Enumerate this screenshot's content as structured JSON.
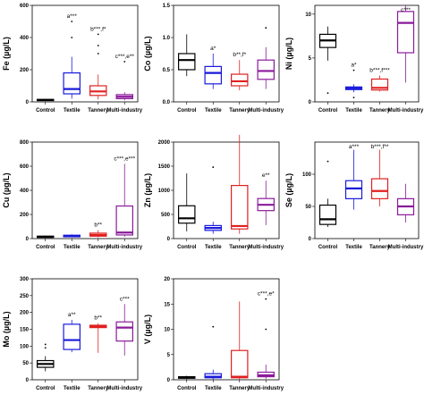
{
  "chart_data": [
    {
      "type": "box",
      "ylabel": "Fe (µg/L)",
      "categories": [
        "Control",
        "Textile",
        "Tannery",
        "Multi-industry"
      ],
      "colors": [
        "#000000",
        "#1a1adb",
        "#e02020",
        "#8a1a9a"
      ],
      "ylim": [
        0,
        600
      ],
      "yticks": [
        0,
        200,
        400,
        600
      ],
      "boxes": [
        {
          "q1": 8,
          "median": 12,
          "q3": 15,
          "whisker_low": 5,
          "whisker_high": 18,
          "outliers": []
        },
        {
          "q1": 50,
          "median": 80,
          "q3": 180,
          "whisker_low": 20,
          "whisker_high": 280,
          "outliers": [
            400,
            500
          ]
        },
        {
          "q1": 40,
          "median": 65,
          "q3": 100,
          "whisker_low": 15,
          "whisker_high": 170,
          "outliers": [
            300,
            350,
            420
          ]
        },
        {
          "q1": 20,
          "median": 32,
          "q3": 45,
          "whisker_low": 10,
          "whisker_high": 60,
          "outliers": [
            250
          ]
        }
      ],
      "significance": [
        "",
        "a***",
        "b***,f*",
        "c***,e**"
      ]
    },
    {
      "type": "box",
      "ylabel": "Co (µg/L)",
      "categories": [
        "Control",
        "Textile",
        "Tannery",
        "Multi-industry"
      ],
      "colors": [
        "#000000",
        "#1a1adb",
        "#e02020",
        "#8a1a9a"
      ],
      "ylim": [
        0,
        1.5
      ],
      "yticks": [
        0.0,
        0.5,
        1.0,
        1.5
      ],
      "boxes": [
        {
          "q1": 0.5,
          "median": 0.65,
          "q3": 0.75,
          "whisker_low": 0.4,
          "whisker_high": 1.05,
          "outliers": []
        },
        {
          "q1": 0.28,
          "median": 0.45,
          "q3": 0.55,
          "whisker_low": 0.2,
          "whisker_high": 0.75,
          "outliers": []
        },
        {
          "q1": 0.25,
          "median": 0.32,
          "q3": 0.43,
          "whisker_low": 0.18,
          "whisker_high": 0.65,
          "outliers": []
        },
        {
          "q1": 0.35,
          "median": 0.48,
          "q3": 0.65,
          "whisker_low": 0.2,
          "whisker_high": 0.85,
          "outliers": [
            1.15
          ]
        }
      ],
      "significance": [
        "",
        "a*",
        "b**,f*",
        ""
      ]
    },
    {
      "type": "box",
      "ylabel": "Ni (µg/L)",
      "categories": [
        "Control",
        "Textile",
        "Tannery",
        "Multi-industry"
      ],
      "colors": [
        "#000000",
        "#1a1adb",
        "#e02020",
        "#8a1a9a"
      ],
      "ylim": [
        0,
        11
      ],
      "yticks": [
        0,
        5,
        10
      ],
      "boxes": [
        {
          "q1": 6.2,
          "median": 7.0,
          "q3": 7.7,
          "whisker_low": 4.7,
          "whisker_high": 8.6,
          "outliers": [
            1.0
          ]
        },
        {
          "q1": 1.4,
          "median": 1.55,
          "q3": 1.7,
          "whisker_low": 1.1,
          "whisker_high": 2.0,
          "outliers": [
            0.5,
            3.6
          ]
        },
        {
          "q1": 1.35,
          "median": 1.6,
          "q3": 2.6,
          "whisker_low": 1.2,
          "whisker_high": 3.0,
          "outliers": []
        },
        {
          "q1": 5.6,
          "median": 9.0,
          "q3": 10.3,
          "whisker_low": 2.2,
          "whisker_high": 11.0,
          "outliers": []
        }
      ],
      "significance": [
        "",
        "a*",
        "b***,f***",
        "c***"
      ]
    },
    {
      "type": "box",
      "ylabel": "Cu (µg/L)",
      "categories": [
        "Control",
        "Textile",
        "Tannery",
        "Multi-industry"
      ],
      "colors": [
        "#000000",
        "#1a1adb",
        "#e02020",
        "#8a1a9a"
      ],
      "ylim": [
        0,
        800
      ],
      "yticks": [
        0,
        200,
        400,
        600,
        800
      ],
      "boxes": [
        {
          "q1": 10,
          "median": 15,
          "q3": 20,
          "whisker_low": 5,
          "whisker_high": 25,
          "outliers": []
        },
        {
          "q1": 15,
          "median": 20,
          "q3": 28,
          "whisker_low": 10,
          "whisker_high": 35,
          "outliers": []
        },
        {
          "q1": 20,
          "median": 30,
          "q3": 45,
          "whisker_low": 10,
          "whisker_high": 70,
          "outliers": []
        },
        {
          "q1": 30,
          "median": 50,
          "q3": 270,
          "whisker_low": 15,
          "whisker_high": 620,
          "outliers": []
        }
      ],
      "significance": [
        "",
        "",
        "b**",
        "c***,e***"
      ]
    },
    {
      "type": "box",
      "ylabel": "Zn (µg/L)",
      "categories": [
        "Control",
        "Textile",
        "Tannery",
        "Multi-industry"
      ],
      "colors": [
        "#000000",
        "#1a1adb",
        "#e02020",
        "#8a1a9a"
      ],
      "ylim": [
        0,
        2000
      ],
      "yticks": [
        0,
        500,
        1000,
        1500,
        2000
      ],
      "boxes": [
        {
          "q1": 320,
          "median": 420,
          "q3": 680,
          "whisker_low": 150,
          "whisker_high": 1350,
          "outliers": []
        },
        {
          "q1": 170,
          "median": 220,
          "q3": 270,
          "whisker_low": 100,
          "whisker_high": 350,
          "outliers": [
            1480
          ]
        },
        {
          "q1": 200,
          "median": 260,
          "q3": 1100,
          "whisker_low": 100,
          "whisker_high": 2150,
          "outliers": []
        },
        {
          "q1": 580,
          "median": 700,
          "q3": 830,
          "whisker_low": 280,
          "whisker_high": 1200,
          "outliers": []
        }
      ],
      "significance": [
        "",
        "",
        "",
        "e**"
      ]
    },
    {
      "type": "box",
      "ylabel": "Se (µg/L)",
      "categories": [
        "Control",
        "Textile",
        "Tannery",
        "Multi-industry"
      ],
      "colors": [
        "#000000",
        "#1a1adb",
        "#e02020",
        "#8a1a9a"
      ],
      "ylim": [
        0,
        150
      ],
      "yticks": [
        0,
        50,
        100
      ],
      "boxes": [
        {
          "q1": 22,
          "median": 30,
          "q3": 52,
          "whisker_low": 18,
          "whisker_high": 62,
          "outliers": [
            120
          ]
        },
        {
          "q1": 62,
          "median": 78,
          "q3": 90,
          "whisker_low": 45,
          "whisker_high": 138,
          "outliers": []
        },
        {
          "q1": 62,
          "median": 74,
          "q3": 93,
          "whisker_low": 50,
          "whisker_high": 138,
          "outliers": []
        },
        {
          "q1": 37,
          "median": 50,
          "q3": 62,
          "whisker_low": 25,
          "whisker_high": 85,
          "outliers": []
        }
      ],
      "significance": [
        "",
        "a***",
        "b***,f**",
        ""
      ]
    },
    {
      "type": "box",
      "ylabel": "Mo (µg/L)",
      "categories": [
        "Control",
        "Textile",
        "Tannery",
        "Multi-industry"
      ],
      "colors": [
        "#000000",
        "#1a1adb",
        "#e02020",
        "#8a1a9a"
      ],
      "ylim": [
        0,
        300
      ],
      "yticks": [
        0,
        50,
        100,
        150,
        200,
        250,
        300
      ],
      "boxes": [
        {
          "q1": 37,
          "median": 47,
          "q3": 57,
          "whisker_low": 25,
          "whisker_high": 70,
          "outliers": [
            95,
            105
          ]
        },
        {
          "q1": 90,
          "median": 118,
          "q3": 165,
          "whisker_low": 82,
          "whisker_high": 178,
          "outliers": []
        },
        {
          "q1": 155,
          "median": 158,
          "q3": 162,
          "whisker_low": 80,
          "whisker_high": 168,
          "outliers": []
        },
        {
          "q1": 115,
          "median": 155,
          "q3": 172,
          "whisker_low": 72,
          "whisker_high": 225,
          "outliers": []
        }
      ],
      "significance": [
        "",
        "a**",
        "b**",
        "c***"
      ]
    },
    {
      "type": "box",
      "ylabel": "V (µg/L)",
      "categories": [
        "Control",
        "Textile",
        "Tannery",
        "Multi-industry"
      ],
      "colors": [
        "#000000",
        "#1a1adb",
        "#e02020",
        "#8a1a9a"
      ],
      "ylim": [
        0,
        20
      ],
      "yticks": [
        0,
        5,
        10,
        15,
        20
      ],
      "boxes": [
        {
          "q1": 0.3,
          "median": 0.45,
          "q3": 0.6,
          "whisker_low": 0.1,
          "whisker_high": 0.8,
          "outliers": []
        },
        {
          "q1": 0.4,
          "median": 0.6,
          "q3": 1.2,
          "whisker_low": 0.1,
          "whisker_high": 2.0,
          "outliers": [
            10.5
          ]
        },
        {
          "q1": 0.4,
          "median": 0.6,
          "q3": 5.8,
          "whisker_low": 0.1,
          "whisker_high": 15.5,
          "outliers": []
        },
        {
          "q1": 0.6,
          "median": 0.9,
          "q3": 1.5,
          "whisker_low": 0.2,
          "whisker_high": 3.0,
          "outliers": [
            10.0,
            16.0
          ]
        }
      ],
      "significance": [
        "",
        "",
        "",
        "c***,e*"
      ]
    }
  ]
}
